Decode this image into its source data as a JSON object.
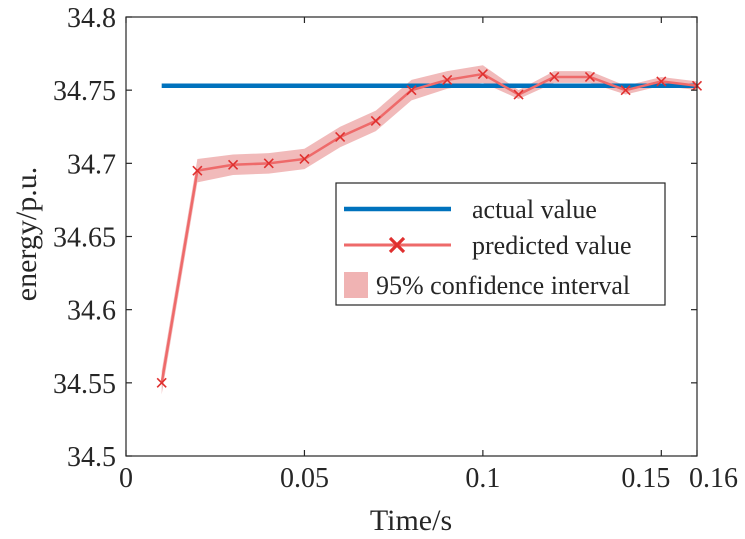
{
  "chart_data": {
    "type": "line",
    "title": "",
    "xlabel": "Time/s",
    "ylabel": "energy/p.u.",
    "xlim": [
      0,
      0.16
    ],
    "ylim": [
      34.5,
      34.8
    ],
    "xticks": [
      0,
      0.05,
      0.1,
      0.15,
      0.16
    ],
    "xtick_labels": [
      "0",
      "0.05",
      "0.1",
      "0.15",
      "0.16"
    ],
    "yticks": [
      34.5,
      34.55,
      34.6,
      34.65,
      34.7,
      34.75,
      34.8
    ],
    "ytick_labels": [
      "34.5",
      "34.55",
      "34.6",
      "34.65",
      "34.7",
      "34.75",
      "34.8"
    ],
    "grid": false,
    "legend_position": "center-right",
    "colors": {
      "actual": "#0072BD",
      "predicted": "#EE6A6A",
      "confidence": "#F0B3B3",
      "axis": "#262626"
    },
    "x": [
      0.01,
      0.02,
      0.03,
      0.04,
      0.05,
      0.06,
      0.07,
      0.08,
      0.09,
      0.1,
      0.11,
      0.12,
      0.13,
      0.14,
      0.15,
      0.16
    ],
    "series": [
      {
        "name": "actual value",
        "style": "line",
        "x": [
          0.01,
          0.16
        ],
        "values": [
          34.753,
          34.753
        ]
      },
      {
        "name": "predicted value",
        "style": "line-x-marker",
        "values": [
          34.55,
          34.695,
          34.699,
          34.7,
          34.703,
          34.718,
          34.729,
          34.75,
          34.757,
          34.761,
          34.747,
          34.759,
          34.759,
          34.75,
          34.756,
          34.753
        ]
      },
      {
        "name": "95% confidence interval",
        "style": "band",
        "lower": [
          34.542,
          34.687,
          34.692,
          34.693,
          34.696,
          34.711,
          34.722,
          34.743,
          34.751,
          34.755,
          34.744,
          34.755,
          34.755,
          34.747,
          34.753,
          34.75
        ],
        "upper": [
          34.558,
          34.703,
          34.706,
          34.707,
          34.71,
          34.725,
          34.736,
          34.757,
          34.763,
          34.767,
          34.75,
          34.763,
          34.763,
          34.753,
          34.759,
          34.756
        ]
      }
    ],
    "legend": [
      "actual value",
      "predicted value",
      "95% confidence interval"
    ]
  }
}
